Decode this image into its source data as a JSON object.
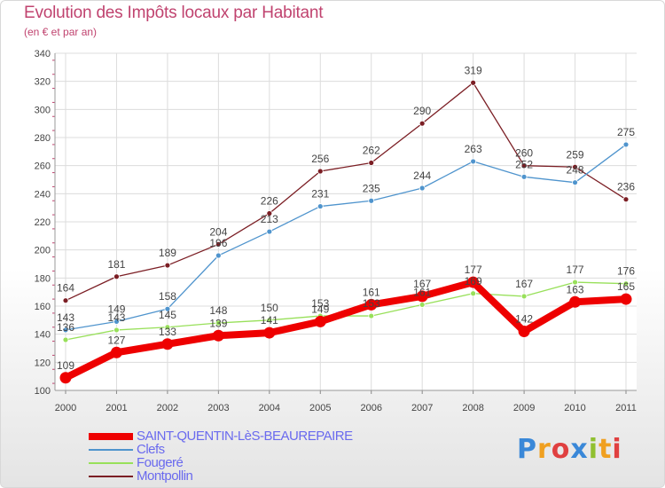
{
  "chart_data": {
    "type": "line",
    "title": "Evolution des Impôts locaux par Habitant",
    "subtitle": "(en € et par an)",
    "xlabel": "",
    "ylabel": "",
    "x": [
      "2000",
      "2001",
      "2002",
      "2003",
      "2004",
      "2005",
      "2006",
      "2007",
      "2008",
      "2009",
      "2010",
      "2011"
    ],
    "ylim": [
      100,
      340
    ],
    "yticks": [
      "100",
      "120",
      "140",
      "160",
      "180",
      "200",
      "220",
      "240",
      "260",
      "280",
      "300",
      "320",
      "340"
    ],
    "grid": true,
    "legend_position": "bottom-left",
    "series": [
      {
        "name": "SAINT-QUENTIN-LèS-BEAUREPAIRE",
        "color": "#ee0000",
        "values": [
          109,
          127,
          133,
          139,
          141,
          149,
          161,
          167,
          177,
          142,
          163,
          165
        ],
        "labels": [
          "109",
          "127",
          "133",
          "139",
          "141",
          "149",
          "161",
          "167",
          "177",
          "142",
          "163",
          "165"
        ]
      },
      {
        "name": "Clefs",
        "color": "#4f94cd",
        "values": [
          143,
          149,
          158,
          196,
          213,
          231,
          235,
          244,
          263,
          252,
          248,
          275
        ],
        "labels": [
          "143",
          "149",
          "158",
          "196",
          "213",
          "231",
          "235",
          "244",
          "263",
          "252",
          "248",
          "275"
        ]
      },
      {
        "name": "Fougeré",
        "color": "#98e05a",
        "values": [
          136,
          143,
          145,
          148,
          150,
          153,
          153,
          161,
          169,
          167,
          177,
          176
        ],
        "labels": [
          "136",
          "143",
          "145",
          "148",
          "150",
          "153",
          "153",
          "161",
          "169",
          "167",
          "177",
          "176"
        ]
      },
      {
        "name": "Montpollin",
        "color": "#7b1e24",
        "values": [
          164,
          181,
          189,
          204,
          226,
          256,
          262,
          290,
          319,
          260,
          259,
          236
        ],
        "labels": [
          "164",
          "181",
          "189",
          "204",
          "226",
          "256",
          "262",
          "290",
          "319",
          "260",
          "259",
          "236"
        ]
      }
    ]
  },
  "logo": {
    "letters": [
      "P",
      "r",
      "o",
      "x",
      "i",
      "t",
      "i"
    ],
    "colors": [
      "#3a88d8",
      "#f0a020",
      "#e04040",
      "#3a88d8",
      "#90c030",
      "#f0a020",
      "#e04040"
    ]
  }
}
